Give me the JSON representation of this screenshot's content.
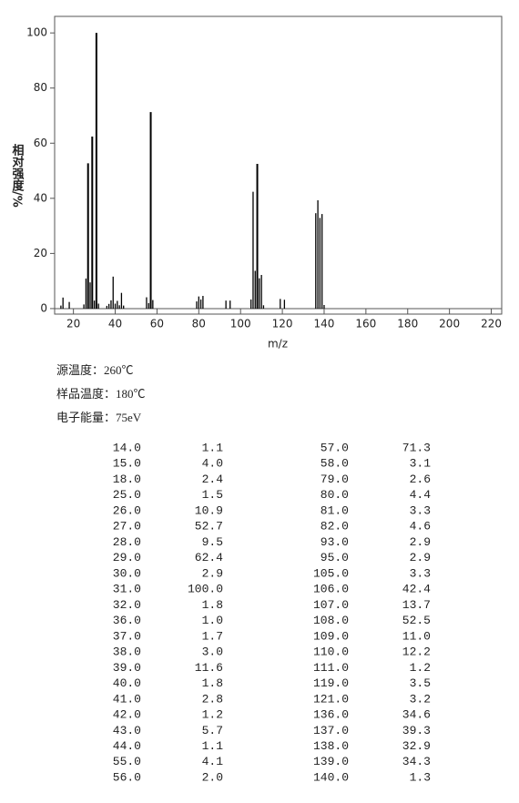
{
  "chart_data": {
    "type": "bar",
    "xlabel": "m/z",
    "ylabel": "相对强度/%",
    "x": [
      14,
      15,
      18,
      25,
      26,
      27,
      28,
      29,
      30,
      31,
      32,
      36,
      37,
      38,
      39,
      40,
      41,
      42,
      43,
      44,
      55,
      56,
      57,
      58,
      79,
      80,
      81,
      82,
      93,
      95,
      105,
      106,
      107,
      108,
      109,
      110,
      111,
      119,
      121,
      136,
      137,
      138,
      139,
      140
    ],
    "values": [
      1.1,
      4.0,
      2.4,
      1.5,
      10.9,
      52.7,
      9.5,
      62.4,
      2.9,
      100.0,
      1.8,
      1.0,
      1.7,
      3.0,
      11.6,
      1.8,
      2.8,
      1.2,
      5.7,
      1.1,
      4.1,
      2.0,
      71.3,
      3.1,
      2.6,
      4.4,
      3.3,
      4.6,
      2.9,
      2.9,
      3.3,
      42.4,
      13.7,
      52.5,
      11.0,
      12.2,
      1.2,
      3.5,
      3.2,
      34.6,
      39.3,
      32.9,
      34.3,
      1.3
    ],
    "color": "#000000",
    "xlim": [
      11,
      225
    ],
    "xticks": [
      20,
      40,
      60,
      80,
      100,
      120,
      140,
      160,
      180,
      200,
      220
    ],
    "ylim": [
      -2,
      106
    ],
    "yticks": [
      0,
      20,
      40,
      60,
      80,
      100
    ]
  },
  "conditions": [
    "源温度：260℃",
    "样品温度：180℃",
    "电子能量：75eV"
  ],
  "table": {
    "rows": [
      [
        "14.0",
        "1.1",
        "57.0",
        "71.3"
      ],
      [
        "15.0",
        "4.0",
        "58.0",
        "3.1"
      ],
      [
        "18.0",
        "2.4",
        "79.0",
        "2.6"
      ],
      [
        "25.0",
        "1.5",
        "80.0",
        "4.4"
      ],
      [
        "26.0",
        "10.9",
        "81.0",
        "3.3"
      ],
      [
        "27.0",
        "52.7",
        "82.0",
        "4.6"
      ],
      [
        "28.0",
        "9.5",
        "93.0",
        "2.9"
      ],
      [
        "29.0",
        "62.4",
        "95.0",
        "2.9"
      ],
      [
        "30.0",
        "2.9",
        "105.0",
        "3.3"
      ],
      [
        "31.0",
        "100.0",
        "106.0",
        "42.4"
      ],
      [
        "32.0",
        "1.8",
        "107.0",
        "13.7"
      ],
      [
        "36.0",
        "1.0",
        "108.0",
        "52.5"
      ],
      [
        "37.0",
        "1.7",
        "109.0",
        "11.0"
      ],
      [
        "38.0",
        "3.0",
        "110.0",
        "12.2"
      ],
      [
        "39.0",
        "11.6",
        "111.0",
        "1.2"
      ],
      [
        "40.0",
        "1.8",
        "119.0",
        "3.5"
      ],
      [
        "41.0",
        "2.8",
        "121.0",
        "3.2"
      ],
      [
        "42.0",
        "1.2",
        "136.0",
        "34.6"
      ],
      [
        "43.0",
        "5.7",
        "137.0",
        "39.3"
      ],
      [
        "44.0",
        "1.1",
        "138.0",
        "32.9"
      ],
      [
        "55.0",
        "4.1",
        "139.0",
        "34.3"
      ],
      [
        "56.0",
        "2.0",
        "140.0",
        "1.3"
      ]
    ]
  }
}
